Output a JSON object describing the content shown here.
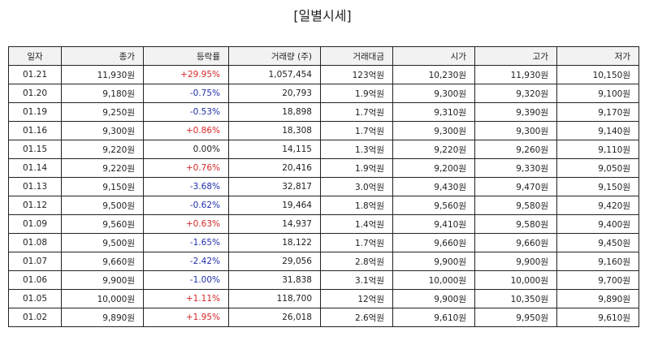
{
  "header": {
    "title": "[일별시세]"
  },
  "table": {
    "headers": [
      "일자",
      "종가",
      "등락률",
      "거래량 (주)",
      "거래대금",
      "시가",
      "고가",
      "저가"
    ],
    "rows": [
      [
        "01.21",
        "11,930원",
        "+29.95%",
        "1,057,454",
        "123억원",
        "10,230원",
        "11,930원",
        "10,150원"
      ],
      [
        "01.20",
        "9,180원",
        "-0.75%",
        "20,793",
        "1.9억원",
        "9,300원",
        "9,320원",
        "9,100원"
      ],
      [
        "01.19",
        "9,250원",
        "-0.53%",
        "18,898",
        "1.7억원",
        "9,310원",
        "9,390원",
        "9,170원"
      ],
      [
        "01.16",
        "9,300원",
        "+0.86%",
        "18,308",
        "1.7억원",
        "9,300원",
        "9,300원",
        "9,140원"
      ],
      [
        "01.15",
        "9,220원",
        "0.00%",
        "14,115",
        "1.3억원",
        "9,220원",
        "9,260원",
        "9,110원"
      ],
      [
        "01.14",
        "9,220원",
        "+0.76%",
        "20,416",
        "1.9억원",
        "9,200원",
        "9,330원",
        "9,050원"
      ],
      [
        "01.13",
        "9,150원",
        "-3.68%",
        "32,817",
        "3.0억원",
        "9,430원",
        "9,470원",
        "9,150원"
      ],
      [
        "01.12",
        "9,500원",
        "-0.62%",
        "19,464",
        "1.8억원",
        "9,560원",
        "9,580원",
        "9,420원"
      ],
      [
        "01.09",
        "9,560원",
        "+0.63%",
        "14,937",
        "1.4억원",
        "9,410원",
        "9,580원",
        "9,400원"
      ],
      [
        "01.08",
        "9,500원",
        "-1.65%",
        "18,122",
        "1.7억원",
        "9,660원",
        "9,660원",
        "9,450원"
      ],
      [
        "01.07",
        "9,660원",
        "-2.42%",
        "29,056",
        "2.8억원",
        "9,900원",
        "9,900원",
        "9,160원"
      ],
      [
        "01.06",
        "9,900원",
        "-1.00%",
        "31,838",
        "3.1억원",
        "10,000원",
        "10,000원",
        "9,700원"
      ],
      [
        "01.05",
        "10,000원",
        "+1.11%",
        "118,700",
        "12억원",
        "9,900원",
        "10,350원",
        "9,890원"
      ],
      [
        "01.02",
        "9,890원",
        "+1.95%",
        "26,018",
        "2.6억원",
        "9,610원",
        "9,950원",
        "9,610원"
      ]
    ]
  }
}
